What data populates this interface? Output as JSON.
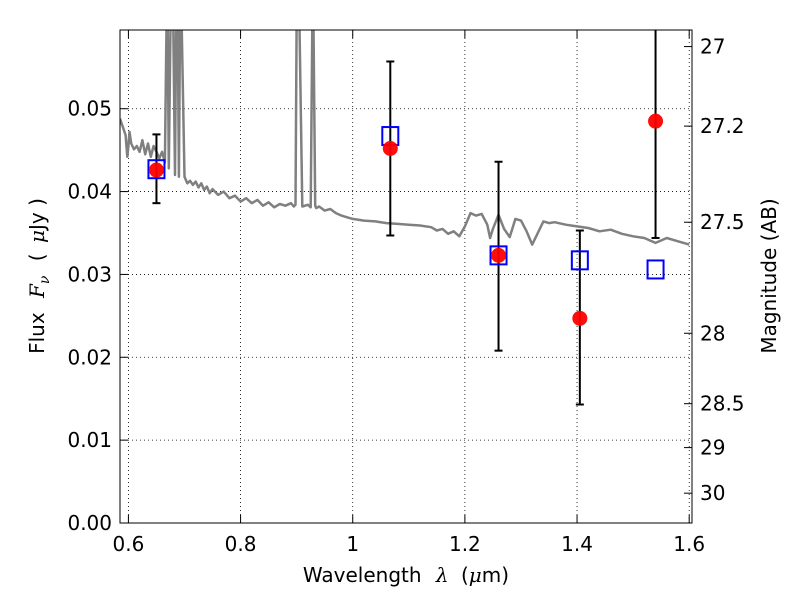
{
  "chart_data": {
    "type": "scatter",
    "xlabel": {
      "prefix": "Wavelength",
      "symbol": "λ",
      "unit_open": "(",
      "unit_mu": "μ",
      "unit_rest": "m)"
    },
    "ylabel": {
      "prefix": "Flux",
      "symbol": "F",
      "subscript": "ν",
      "unit_open": "(",
      "unit_mu": "μ",
      "unit_rest": "Jy )"
    },
    "y2label": "Magnitude (AB)",
    "xlim": [
      0.585,
      1.605
    ],
    "ylim": [
      0.0,
      0.0595
    ],
    "grid": true,
    "x_ticks": [
      {
        "value": 0.6,
        "label": "0.6"
      },
      {
        "value": 0.8,
        "label": "0.8"
      },
      {
        "value": 1.0,
        "label": "1"
      },
      {
        "value": 1.2,
        "label": "1.2"
      },
      {
        "value": 1.4,
        "label": "1.4"
      },
      {
        "value": 1.6,
        "label": "1.6"
      }
    ],
    "y_ticks": [
      {
        "value": 0.0,
        "label": "0.00"
      },
      {
        "value": 0.01,
        "label": "0.01"
      },
      {
        "value": 0.02,
        "label": "0.02"
      },
      {
        "value": 0.03,
        "label": "0.03"
      },
      {
        "value": 0.04,
        "label": "0.04"
      },
      {
        "value": 0.05,
        "label": "0.05"
      }
    ],
    "y2_ticks": [
      {
        "flux": 0.0575,
        "label": "27"
      },
      {
        "flux": 0.0479,
        "label": "27.2"
      },
      {
        "flux": 0.0363,
        "label": "27.5"
      },
      {
        "flux": 0.0229,
        "label": "28"
      },
      {
        "flux": 0.0144,
        "label": "28.5"
      },
      {
        "flux": 0.0091,
        "label": "29"
      },
      {
        "flux": 0.0036,
        "label": "30"
      }
    ],
    "series": [
      {
        "kind": "model-spectrum",
        "color": "#808080",
        "x": [
          0.585,
          0.59,
          0.595,
          0.598,
          0.6,
          0.602,
          0.605,
          0.61,
          0.615,
          0.62,
          0.625,
          0.63,
          0.635,
          0.64,
          0.645,
          0.65,
          0.655,
          0.66,
          0.665,
          0.668,
          0.67,
          0.672,
          0.675,
          0.68,
          0.683,
          0.685,
          0.688,
          0.69,
          0.692,
          0.695,
          0.7,
          0.705,
          0.71,
          0.715,
          0.72,
          0.725,
          0.73,
          0.735,
          0.74,
          0.745,
          0.75,
          0.76,
          0.77,
          0.78,
          0.79,
          0.8,
          0.81,
          0.82,
          0.83,
          0.84,
          0.85,
          0.86,
          0.87,
          0.88,
          0.89,
          0.895,
          0.898,
          0.9,
          0.902,
          0.905,
          0.91,
          0.92,
          0.925,
          0.928,
          0.93,
          0.933,
          0.935,
          0.94,
          0.95,
          0.96,
          0.97,
          0.98,
          0.99,
          1.0,
          1.02,
          1.04,
          1.06,
          1.08,
          1.1,
          1.12,
          1.14,
          1.15,
          1.16,
          1.17,
          1.18,
          1.19,
          1.2,
          1.21,
          1.22,
          1.23,
          1.24,
          1.245,
          1.25,
          1.26,
          1.27,
          1.28,
          1.29,
          1.3,
          1.31,
          1.32,
          1.33,
          1.34,
          1.35,
          1.36,
          1.38,
          1.4,
          1.42,
          1.44,
          1.46,
          1.48,
          1.5,
          1.52,
          1.54,
          1.56,
          1.58,
          1.6
        ],
        "y": [
          0.0488,
          0.0478,
          0.0468,
          0.0442,
          0.0455,
          0.0472,
          0.0458,
          0.0451,
          0.0455,
          0.0448,
          0.0462,
          0.0445,
          0.0458,
          0.0442,
          0.0455,
          0.0448,
          0.044,
          0.0448,
          0.0435,
          0.06,
          0.06,
          0.0428,
          0.06,
          0.06,
          0.042,
          0.06,
          0.06,
          0.0418,
          0.06,
          0.06,
          0.0418,
          0.041,
          0.0413,
          0.0408,
          0.0412,
          0.0405,
          0.041,
          0.0402,
          0.0406,
          0.0398,
          0.0403,
          0.0396,
          0.04,
          0.0392,
          0.0395,
          0.0388,
          0.0392,
          0.0386,
          0.039,
          0.0383,
          0.0387,
          0.0381,
          0.0385,
          0.0383,
          0.0386,
          0.0382,
          0.0384,
          0.06,
          0.06,
          0.06,
          0.0382,
          0.0384,
          0.0381,
          0.06,
          0.06,
          0.0383,
          0.038,
          0.0382,
          0.0377,
          0.0379,
          0.0374,
          0.0371,
          0.0369,
          0.0367,
          0.0365,
          0.0364,
          0.0362,
          0.0361,
          0.036,
          0.0359,
          0.0357,
          0.0353,
          0.0355,
          0.0349,
          0.0352,
          0.0346,
          0.0358,
          0.0374,
          0.0371,
          0.0373,
          0.036,
          0.0344,
          0.0355,
          0.0372,
          0.0355,
          0.0345,
          0.0367,
          0.0365,
          0.0352,
          0.0336,
          0.035,
          0.0364,
          0.0362,
          0.0363,
          0.036,
          0.0358,
          0.0356,
          0.0352,
          0.0354,
          0.0349,
          0.0346,
          0.0344,
          0.0338,
          0.0344,
          0.034,
          0.0336
        ]
      },
      {
        "kind": "model-photometry",
        "marker": "open-square",
        "color": "#0000ff",
        "x": [
          0.65,
          1.067,
          1.26,
          1.405,
          1.54
        ],
        "y": [
          0.0427,
          0.0467,
          0.0323,
          0.0317,
          0.0306
        ]
      },
      {
        "kind": "observed",
        "marker": "filled-circle",
        "color": "#ff0000",
        "x": [
          0.65,
          1.067,
          1.26,
          1.405,
          1.54
        ],
        "y": [
          0.0426,
          0.0452,
          0.0323,
          0.0247,
          0.0485
        ],
        "yerr_low": [
          0.0386,
          0.0347,
          0.0208,
          0.0143,
          0.0344
        ],
        "yerr_high": [
          0.0469,
          0.0557,
          0.0436,
          0.0353,
          0.06
        ]
      }
    ]
  }
}
